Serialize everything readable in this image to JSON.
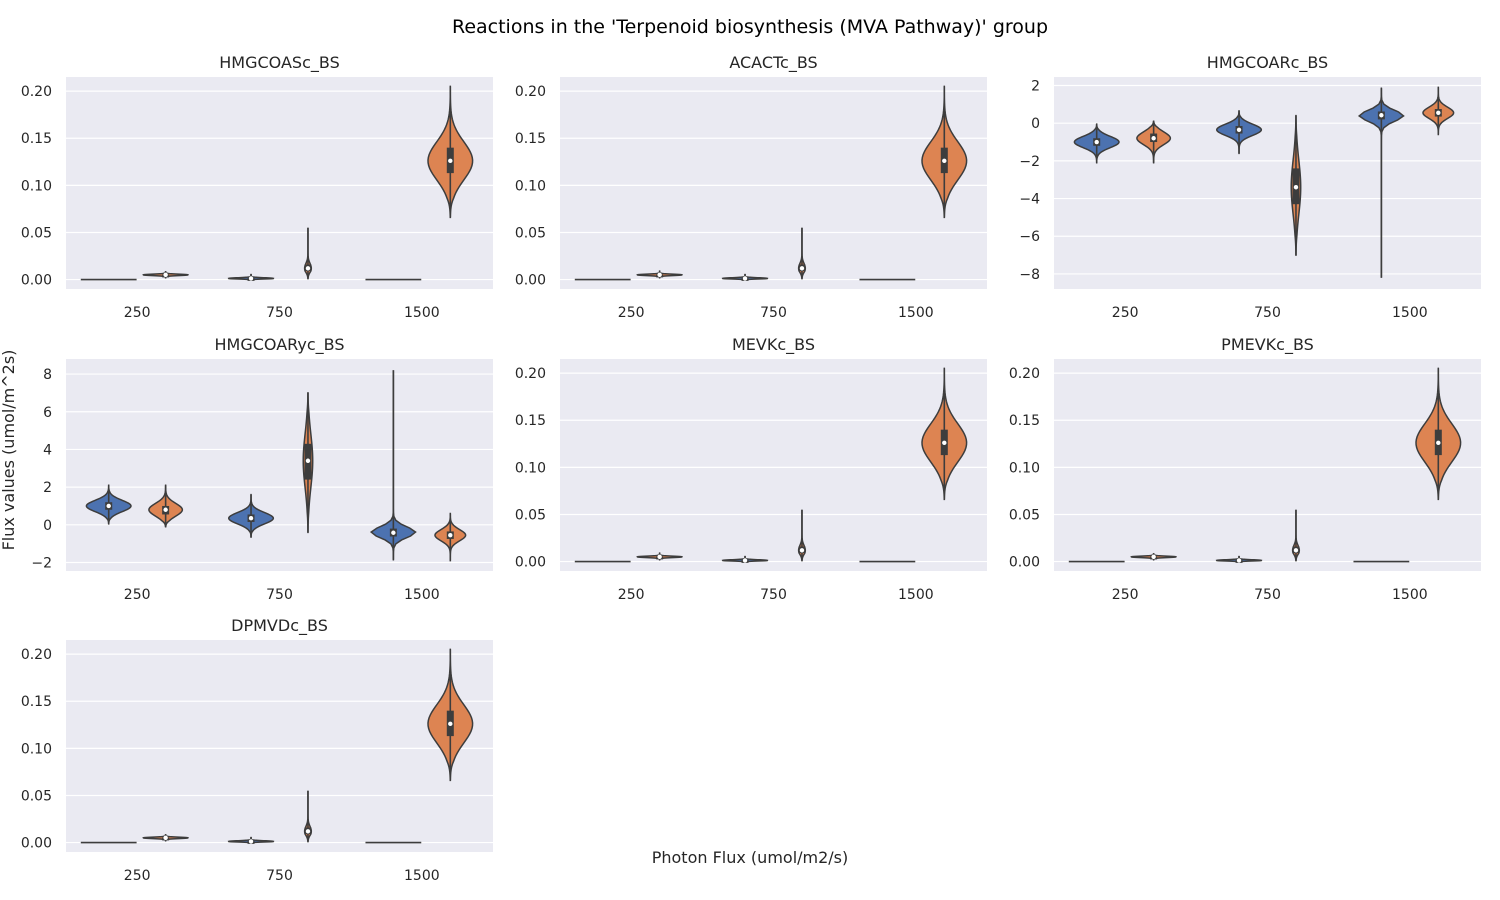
{
  "suptitle": "Reactions in the 'Terpenoid biosynthesis (MVA Pathway)' group",
  "xlabel": "Photon Flux (umol/m2/s)",
  "ylabel": "Flux values (umol/m^2s)",
  "colors": {
    "blue": "#4c72b0",
    "orange": "#dd8452",
    "axes_bg": "#eaeaf2",
    "grid": "#ffffff",
    "line": "#3d3d3d"
  },
  "chart_data": [
    {
      "type": "violin",
      "title": "HMGCOASc_BS",
      "categories": [
        "250",
        "750",
        "1500"
      ],
      "ylim": [
        -0.01,
        0.215
      ],
      "yticks": [
        0.0,
        0.05,
        0.1,
        0.15,
        0.2
      ],
      "ytick_labels": [
        "0.00",
        "0.05",
        "0.10",
        "0.15",
        "0.20"
      ],
      "violins": [
        {
          "cat": 0,
          "hue": 0,
          "min": 0.0,
          "max": 0.0,
          "q1": 0.0,
          "median": 0.0,
          "q3": 0.0,
          "width": 0.0
        },
        {
          "cat": 0,
          "hue": 1,
          "min": 0.002,
          "max": 0.009,
          "q1": 0.0045,
          "median": 0.005,
          "q3": 0.0055,
          "width": 0.8
        },
        {
          "cat": 1,
          "hue": 0,
          "min": 0.0,
          "max": 0.006,
          "q1": 0.0008,
          "median": 0.0012,
          "q3": 0.0018,
          "width": 0.8
        },
        {
          "cat": 1,
          "hue": 1,
          "min": 0.001,
          "max": 0.055,
          "q1": 0.009,
          "median": 0.012,
          "q3": 0.016,
          "width": 0.12
        },
        {
          "cat": 2,
          "hue": 0,
          "min": 0.0,
          "max": 0.0,
          "q1": 0.0,
          "median": 0.0,
          "q3": 0.0,
          "width": 0.0
        },
        {
          "cat": 2,
          "hue": 1,
          "min": 0.066,
          "max": 0.205,
          "q1": 0.113,
          "median": 0.126,
          "q3": 0.14,
          "width": 0.8
        }
      ]
    },
    {
      "type": "violin",
      "title": "ACACTc_BS",
      "categories": [
        "250",
        "750",
        "1500"
      ],
      "ylim": [
        -0.01,
        0.215
      ],
      "yticks": [
        0.0,
        0.05,
        0.1,
        0.15,
        0.2
      ],
      "ytick_labels": [
        "0.00",
        "0.05",
        "0.10",
        "0.15",
        "0.20"
      ],
      "violins": [
        {
          "cat": 0,
          "hue": 0,
          "min": 0.0,
          "max": 0.0,
          "q1": 0.0,
          "median": 0.0,
          "q3": 0.0,
          "width": 0.0
        },
        {
          "cat": 0,
          "hue": 1,
          "min": 0.002,
          "max": 0.009,
          "q1": 0.0045,
          "median": 0.005,
          "q3": 0.0055,
          "width": 0.8
        },
        {
          "cat": 1,
          "hue": 0,
          "min": 0.0,
          "max": 0.006,
          "q1": 0.0008,
          "median": 0.0012,
          "q3": 0.0018,
          "width": 0.8
        },
        {
          "cat": 1,
          "hue": 1,
          "min": 0.001,
          "max": 0.055,
          "q1": 0.009,
          "median": 0.012,
          "q3": 0.016,
          "width": 0.12
        },
        {
          "cat": 2,
          "hue": 0,
          "min": 0.0,
          "max": 0.0,
          "q1": 0.0,
          "median": 0.0,
          "q3": 0.0,
          "width": 0.0
        },
        {
          "cat": 2,
          "hue": 1,
          "min": 0.066,
          "max": 0.205,
          "q1": 0.113,
          "median": 0.126,
          "q3": 0.14,
          "width": 0.8
        }
      ]
    },
    {
      "type": "violin",
      "title": "HMGCOARc_BS",
      "categories": [
        "250",
        "750",
        "1500"
      ],
      "ylim": [
        -8.8,
        2.45
      ],
      "yticks": [
        -8,
        -6,
        -4,
        -2,
        0,
        2
      ],
      "ytick_labels": [
        "−8",
        "−6",
        "−4",
        "−2",
        "0",
        "2"
      ],
      "violins": [
        {
          "cat": 0,
          "hue": 0,
          "min": -2.1,
          "max": -0.05,
          "q1": -1.2,
          "median": -1.0,
          "q3": -0.8,
          "width": 0.8
        },
        {
          "cat": 0,
          "hue": 1,
          "min": -2.1,
          "max": 0.1,
          "q1": -1.0,
          "median": -0.8,
          "q3": -0.55,
          "width": 0.6
        },
        {
          "cat": 1,
          "hue": 0,
          "min": -1.6,
          "max": 0.65,
          "q1": -0.55,
          "median": -0.35,
          "q3": -0.15,
          "width": 0.8
        },
        {
          "cat": 1,
          "hue": 1,
          "min": -7.0,
          "max": 0.4,
          "q1": -4.3,
          "median": -3.4,
          "q3": -2.4,
          "width": 0.17
        },
        {
          "cat": 2,
          "hue": 0,
          "min": -8.2,
          "max": 1.85,
          "q1": 0.2,
          "median": 0.42,
          "q3": 0.62,
          "width": 0.8
        },
        {
          "cat": 2,
          "hue": 1,
          "min": -0.6,
          "max": 1.9,
          "q1": 0.35,
          "median": 0.55,
          "q3": 0.75,
          "width": 0.55
        }
      ]
    },
    {
      "type": "violin",
      "title": "HMGCOARyc_BS",
      "categories": [
        "250",
        "750",
        "1500"
      ],
      "ylim": [
        -2.45,
        8.8
      ],
      "yticks": [
        -2,
        0,
        2,
        4,
        6,
        8
      ],
      "ytick_labels": [
        "−2",
        "0",
        "2",
        "4",
        "6",
        "8"
      ],
      "violins": [
        {
          "cat": 0,
          "hue": 0,
          "min": 0.05,
          "max": 2.1,
          "q1": 0.8,
          "median": 1.0,
          "q3": 1.2,
          "width": 0.8
        },
        {
          "cat": 0,
          "hue": 1,
          "min": -0.1,
          "max": 2.1,
          "q1": 0.55,
          "median": 0.8,
          "q3": 1.0,
          "width": 0.6
        },
        {
          "cat": 1,
          "hue": 0,
          "min": -0.65,
          "max": 1.6,
          "q1": 0.15,
          "median": 0.35,
          "q3": 0.55,
          "width": 0.8
        },
        {
          "cat": 1,
          "hue": 1,
          "min": -0.4,
          "max": 7.0,
          "q1": 2.4,
          "median": 3.4,
          "q3": 4.3,
          "width": 0.17
        },
        {
          "cat": 2,
          "hue": 0,
          "min": -1.85,
          "max": 8.2,
          "q1": -0.62,
          "median": -0.42,
          "q3": -0.2,
          "width": 0.8
        },
        {
          "cat": 2,
          "hue": 1,
          "min": -1.9,
          "max": 0.6,
          "q1": -0.75,
          "median": -0.55,
          "q3": -0.35,
          "width": 0.55
        }
      ]
    },
    {
      "type": "violin",
      "title": "MEVKc_BS",
      "categories": [
        "250",
        "750",
        "1500"
      ],
      "ylim": [
        -0.01,
        0.215
      ],
      "yticks": [
        0.0,
        0.05,
        0.1,
        0.15,
        0.2
      ],
      "ytick_labels": [
        "0.00",
        "0.05",
        "0.10",
        "0.15",
        "0.20"
      ],
      "violins": [
        {
          "cat": 0,
          "hue": 0,
          "min": 0.0,
          "max": 0.0,
          "q1": 0.0,
          "median": 0.0,
          "q3": 0.0,
          "width": 0.0
        },
        {
          "cat": 0,
          "hue": 1,
          "min": 0.002,
          "max": 0.009,
          "q1": 0.0045,
          "median": 0.005,
          "q3": 0.0055,
          "width": 0.8
        },
        {
          "cat": 1,
          "hue": 0,
          "min": 0.0,
          "max": 0.006,
          "q1": 0.0008,
          "median": 0.0012,
          "q3": 0.0018,
          "width": 0.8
        },
        {
          "cat": 1,
          "hue": 1,
          "min": 0.001,
          "max": 0.055,
          "q1": 0.009,
          "median": 0.012,
          "q3": 0.016,
          "width": 0.12
        },
        {
          "cat": 2,
          "hue": 0,
          "min": 0.0,
          "max": 0.0,
          "q1": 0.0,
          "median": 0.0,
          "q3": 0.0,
          "width": 0.0
        },
        {
          "cat": 2,
          "hue": 1,
          "min": 0.066,
          "max": 0.205,
          "q1": 0.113,
          "median": 0.126,
          "q3": 0.14,
          "width": 0.8
        }
      ]
    },
    {
      "type": "violin",
      "title": "PMEVKc_BS",
      "categories": [
        "250",
        "750",
        "1500"
      ],
      "ylim": [
        -0.01,
        0.215
      ],
      "yticks": [
        0.0,
        0.05,
        0.1,
        0.15,
        0.2
      ],
      "ytick_labels": [
        "0.00",
        "0.05",
        "0.10",
        "0.15",
        "0.20"
      ],
      "violins": [
        {
          "cat": 0,
          "hue": 0,
          "min": 0.0,
          "max": 0.0,
          "q1": 0.0,
          "median": 0.0,
          "q3": 0.0,
          "width": 0.0
        },
        {
          "cat": 0,
          "hue": 1,
          "min": 0.002,
          "max": 0.009,
          "q1": 0.0045,
          "median": 0.005,
          "q3": 0.0055,
          "width": 0.8
        },
        {
          "cat": 1,
          "hue": 0,
          "min": 0.0,
          "max": 0.006,
          "q1": 0.0008,
          "median": 0.0012,
          "q3": 0.0018,
          "width": 0.8
        },
        {
          "cat": 1,
          "hue": 1,
          "min": 0.001,
          "max": 0.055,
          "q1": 0.009,
          "median": 0.012,
          "q3": 0.016,
          "width": 0.12
        },
        {
          "cat": 2,
          "hue": 0,
          "min": 0.0,
          "max": 0.0,
          "q1": 0.0,
          "median": 0.0,
          "q3": 0.0,
          "width": 0.0
        },
        {
          "cat": 2,
          "hue": 1,
          "min": 0.066,
          "max": 0.205,
          "q1": 0.113,
          "median": 0.126,
          "q3": 0.14,
          "width": 0.8
        }
      ]
    },
    {
      "type": "violin",
      "title": "DPMVDc_BS",
      "categories": [
        "250",
        "750",
        "1500"
      ],
      "ylim": [
        -0.01,
        0.215
      ],
      "yticks": [
        0.0,
        0.05,
        0.1,
        0.15,
        0.2
      ],
      "ytick_labels": [
        "0.00",
        "0.05",
        "0.10",
        "0.15",
        "0.20"
      ],
      "violins": [
        {
          "cat": 0,
          "hue": 0,
          "min": 0.0,
          "max": 0.0,
          "q1": 0.0,
          "median": 0.0,
          "q3": 0.0,
          "width": 0.0
        },
        {
          "cat": 0,
          "hue": 1,
          "min": 0.002,
          "max": 0.009,
          "q1": 0.0045,
          "median": 0.005,
          "q3": 0.0055,
          "width": 0.8
        },
        {
          "cat": 1,
          "hue": 0,
          "min": 0.0,
          "max": 0.006,
          "q1": 0.0008,
          "median": 0.0012,
          "q3": 0.0018,
          "width": 0.8
        },
        {
          "cat": 1,
          "hue": 1,
          "min": 0.001,
          "max": 0.055,
          "q1": 0.009,
          "median": 0.012,
          "q3": 0.016,
          "width": 0.12
        },
        {
          "cat": 2,
          "hue": 0,
          "min": 0.0,
          "max": 0.0,
          "q1": 0.0,
          "median": 0.0,
          "q3": 0.0,
          "width": 0.0
        },
        {
          "cat": 2,
          "hue": 1,
          "min": 0.066,
          "max": 0.205,
          "q1": 0.113,
          "median": 0.126,
          "q3": 0.14,
          "width": 0.8
        }
      ]
    }
  ]
}
